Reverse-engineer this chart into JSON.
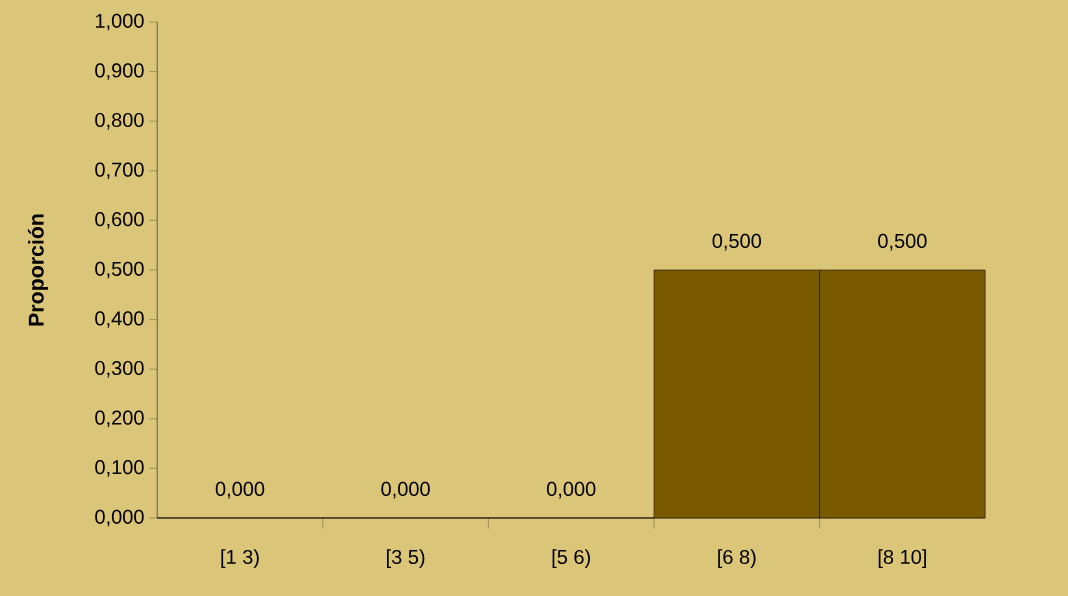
{
  "chart_data": {
    "type": "bar",
    "ylabel": "Proporción",
    "categories": [
      "[1 3)",
      "[3 5)",
      "[5 6)",
      "[6 8)",
      "[8 10]"
    ],
    "values": [
      0,
      0,
      0,
      0.5,
      0.5
    ],
    "value_labels": [
      "0,000",
      "0,000",
      "0,000",
      "0,500",
      "0,500"
    ],
    "color": "#7a5a00",
    "ylim": [
      0,
      1
    ],
    "yticks": [
      {
        "value": 0,
        "label": "0,000"
      },
      {
        "value": 0.1,
        "label": "0,100"
      },
      {
        "value": 0.2,
        "label": "0,200"
      },
      {
        "value": 0.3,
        "label": "0,300"
      },
      {
        "value": 0.4,
        "label": "0,400"
      },
      {
        "value": 0.5,
        "label": "0,500"
      },
      {
        "value": 0.6,
        "label": "0,600"
      },
      {
        "value": 0.7,
        "label": "0,700"
      },
      {
        "value": 0.8,
        "label": "0,800"
      },
      {
        "value": 0.9,
        "label": "0,900"
      },
      {
        "value": 1,
        "label": "1,000"
      }
    ],
    "grid": false
  }
}
